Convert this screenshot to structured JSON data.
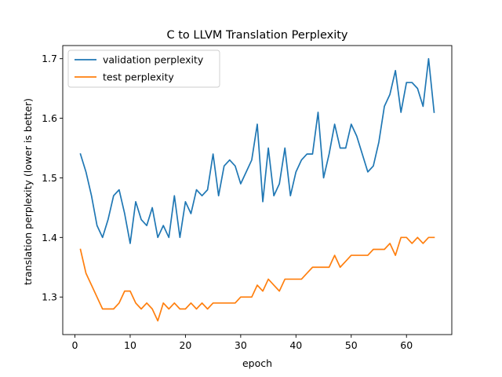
{
  "chart_data": {
    "type": "line",
    "title": "C to LLVM Translation Perplexity",
    "xlabel": "epoch",
    "ylabel": "translation perplexity (lower is better)",
    "xlim": [
      -2.2,
      68.2
    ],
    "ylim": [
      1.237,
      1.722
    ],
    "x_ticks": [
      0,
      10,
      20,
      30,
      40,
      50,
      60
    ],
    "y_ticks": [
      1.3,
      1.4,
      1.5,
      1.6,
      1.7
    ],
    "y_tick_labels": [
      "1.3",
      "1.4",
      "1.5",
      "1.6",
      "1.7"
    ],
    "grid": false,
    "legend_position": "top-left",
    "x": [
      1,
      2,
      3,
      4,
      5,
      6,
      7,
      8,
      9,
      10,
      11,
      12,
      13,
      14,
      15,
      16,
      17,
      18,
      19,
      20,
      21,
      22,
      23,
      24,
      25,
      26,
      27,
      28,
      29,
      30,
      31,
      32,
      33,
      34,
      35,
      36,
      37,
      38,
      39,
      40,
      41,
      42,
      43,
      44,
      45,
      46,
      47,
      48,
      49,
      50,
      51,
      52,
      53,
      54,
      55,
      56,
      57,
      58,
      59,
      60,
      61,
      62,
      63,
      64,
      65
    ],
    "series": [
      {
        "name": "validation perplexity",
        "color": "#1f77b4",
        "values": [
          1.54,
          1.51,
          1.47,
          1.42,
          1.4,
          1.43,
          1.47,
          1.48,
          1.44,
          1.39,
          1.46,
          1.43,
          1.42,
          1.45,
          1.4,
          1.42,
          1.4,
          1.47,
          1.4,
          1.46,
          1.44,
          1.48,
          1.47,
          1.48,
          1.54,
          1.47,
          1.52,
          1.53,
          1.52,
          1.49,
          1.51,
          1.53,
          1.59,
          1.46,
          1.55,
          1.47,
          1.49,
          1.55,
          1.47,
          1.51,
          1.53,
          1.54,
          1.54,
          1.61,
          1.5,
          1.54,
          1.59,
          1.55,
          1.55,
          1.59,
          1.57,
          1.54,
          1.51,
          1.52,
          1.56,
          1.62,
          1.64,
          1.68,
          1.61,
          1.66,
          1.66,
          1.65,
          1.62,
          1.7,
          1.61
        ]
      },
      {
        "name": "test perplexity",
        "color": "#ff7f0e",
        "values": [
          1.38,
          1.34,
          1.32,
          1.3,
          1.28,
          1.28,
          1.28,
          1.29,
          1.31,
          1.31,
          1.29,
          1.28,
          1.29,
          1.28,
          1.26,
          1.29,
          1.28,
          1.29,
          1.28,
          1.28,
          1.29,
          1.28,
          1.29,
          1.28,
          1.29,
          1.29,
          1.29,
          1.29,
          1.29,
          1.3,
          1.3,
          1.3,
          1.32,
          1.31,
          1.33,
          1.32,
          1.31,
          1.33,
          1.33,
          1.33,
          1.33,
          1.34,
          1.35,
          1.35,
          1.35,
          1.35,
          1.37,
          1.35,
          1.36,
          1.37,
          1.37,
          1.37,
          1.37,
          1.38,
          1.38,
          1.38,
          1.39,
          1.37,
          1.4,
          1.4,
          1.39,
          1.4,
          1.39,
          1.4,
          1.4
        ]
      }
    ]
  }
}
